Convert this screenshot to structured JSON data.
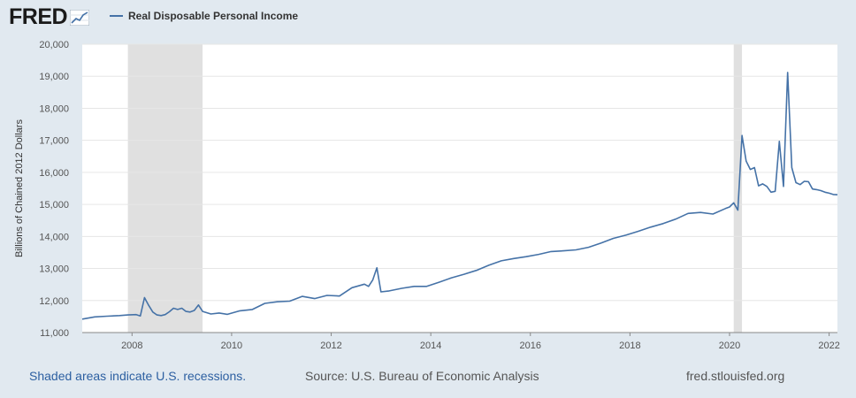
{
  "header": {
    "logo_text": "FRED",
    "logo_icon": "line-chart-icon",
    "legend_label": "Real Disposable Personal Income"
  },
  "colors": {
    "series": "#4572a7",
    "recession": "#e0e0e0",
    "background": "#e1e9f0",
    "plot": "#ffffff",
    "grid": "#e6e6e6"
  },
  "footer": {
    "note": "Shaded areas indicate U.S. recessions.",
    "source": "Source: U.S. Bureau of Economic Analysis",
    "url": "fred.stlouisfed.org"
  },
  "chart_data": {
    "type": "line",
    "title": "",
    "xlabel": "",
    "ylabel": "Billions of Chained 2012 Dollars",
    "xlim": [
      "2007-01",
      "2022-03"
    ],
    "ylim": [
      11000,
      20000
    ],
    "x_ticks": [
      "2008",
      "2010",
      "2012",
      "2014",
      "2016",
      "2018",
      "2020",
      "2022"
    ],
    "y_ticks": [
      "11,000",
      "12,000",
      "13,000",
      "14,000",
      "15,000",
      "16,000",
      "17,000",
      "18,000",
      "19,000",
      "20,000"
    ],
    "grid": true,
    "legend": "top-left",
    "recessions": [
      {
        "start": "2007-12",
        "end": "2009-06"
      },
      {
        "start": "2020-02",
        "end": "2020-04"
      }
    ],
    "series": [
      {
        "name": "Real Disposable Personal Income",
        "points": [
          [
            "2007-01",
            11420
          ],
          [
            "2007-04",
            11490
          ],
          [
            "2007-07",
            11510
          ],
          [
            "2007-10",
            11530
          ],
          [
            "2007-12",
            11550
          ],
          [
            "2008-02",
            11560
          ],
          [
            "2008-03",
            11520
          ],
          [
            "2008-04",
            12090
          ],
          [
            "2008-05",
            11850
          ],
          [
            "2008-06",
            11640
          ],
          [
            "2008-07",
            11550
          ],
          [
            "2008-08",
            11530
          ],
          [
            "2008-09",
            11560
          ],
          [
            "2008-10",
            11650
          ],
          [
            "2008-11",
            11760
          ],
          [
            "2008-12",
            11720
          ],
          [
            "2009-01",
            11760
          ],
          [
            "2009-02",
            11660
          ],
          [
            "2009-03",
            11640
          ],
          [
            "2009-04",
            11690
          ],
          [
            "2009-05",
            11860
          ],
          [
            "2009-06",
            11660
          ],
          [
            "2009-08",
            11580
          ],
          [
            "2009-10",
            11610
          ],
          [
            "2009-12",
            11570
          ],
          [
            "2010-03",
            11680
          ],
          [
            "2010-06",
            11720
          ],
          [
            "2010-09",
            11910
          ],
          [
            "2010-12",
            11960
          ],
          [
            "2011-03",
            11980
          ],
          [
            "2011-06",
            12130
          ],
          [
            "2011-09",
            12060
          ],
          [
            "2011-12",
            12160
          ],
          [
            "2012-03",
            12140
          ],
          [
            "2012-06",
            12400
          ],
          [
            "2012-09",
            12510
          ],
          [
            "2012-10",
            12440
          ],
          [
            "2012-11",
            12640
          ],
          [
            "2012-12",
            13020
          ],
          [
            "2013-01",
            12270
          ],
          [
            "2013-03",
            12300
          ],
          [
            "2013-06",
            12380
          ],
          [
            "2013-09",
            12440
          ],
          [
            "2013-12",
            12440
          ],
          [
            "2014-03",
            12570
          ],
          [
            "2014-06",
            12710
          ],
          [
            "2014-09",
            12820
          ],
          [
            "2014-12",
            12940
          ],
          [
            "2015-03",
            13100
          ],
          [
            "2015-06",
            13240
          ],
          [
            "2015-09",
            13310
          ],
          [
            "2015-12",
            13370
          ],
          [
            "2016-03",
            13440
          ],
          [
            "2016-06",
            13530
          ],
          [
            "2016-09",
            13550
          ],
          [
            "2016-12",
            13580
          ],
          [
            "2017-03",
            13660
          ],
          [
            "2017-06",
            13790
          ],
          [
            "2017-09",
            13940
          ],
          [
            "2017-12",
            14040
          ],
          [
            "2018-03",
            14160
          ],
          [
            "2018-06",
            14290
          ],
          [
            "2018-09",
            14400
          ],
          [
            "2018-12",
            14540
          ],
          [
            "2019-03",
            14720
          ],
          [
            "2019-06",
            14750
          ],
          [
            "2019-09",
            14700
          ],
          [
            "2019-12",
            14870
          ],
          [
            "2020-01",
            14920
          ],
          [
            "2020-02",
            15050
          ],
          [
            "2020-03",
            14820
          ],
          [
            "2020-04",
            17150
          ],
          [
            "2020-05",
            16350
          ],
          [
            "2020-06",
            16090
          ],
          [
            "2020-07",
            16150
          ],
          [
            "2020-08",
            15580
          ],
          [
            "2020-09",
            15640
          ],
          [
            "2020-10",
            15560
          ],
          [
            "2020-11",
            15380
          ],
          [
            "2020-12",
            15410
          ],
          [
            "2021-01",
            16970
          ],
          [
            "2021-02",
            15560
          ],
          [
            "2021-03",
            19120
          ],
          [
            "2021-04",
            16150
          ],
          [
            "2021-05",
            15680
          ],
          [
            "2021-06",
            15620
          ],
          [
            "2021-07",
            15720
          ],
          [
            "2021-08",
            15710
          ],
          [
            "2021-09",
            15480
          ],
          [
            "2021-10",
            15460
          ],
          [
            "2021-11",
            15430
          ],
          [
            "2021-12",
            15380
          ],
          [
            "2022-01",
            15350
          ],
          [
            "2022-02",
            15310
          ],
          [
            "2022-03",
            15300
          ]
        ]
      }
    ]
  }
}
